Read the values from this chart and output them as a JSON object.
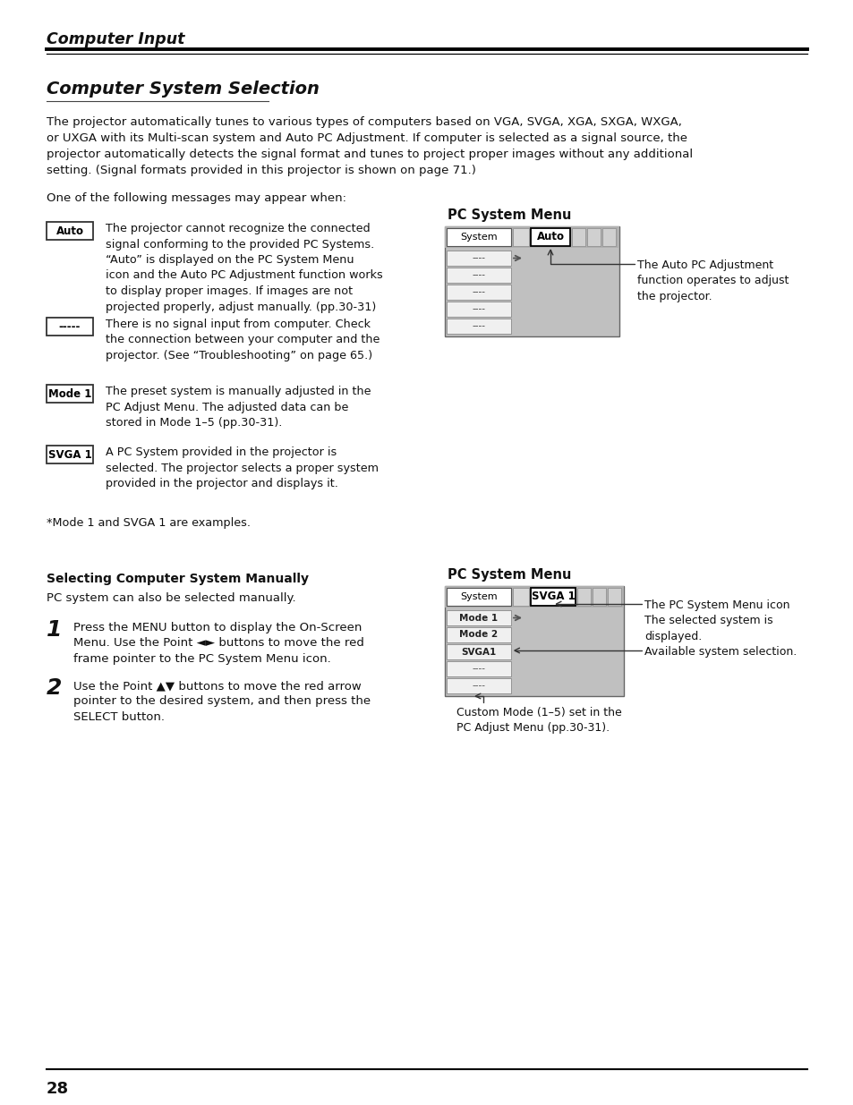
{
  "page_bg": "#ffffff",
  "header_title": "Computer Input",
  "section_title": "Computer System Selection",
  "body_text1": "The projector automatically tunes to various types of computers based on VGA, SVGA, XGA, SXGA, WXGA,\nor UXGA with its Multi-scan system and Auto PC Adjustment. If computer is selected as a signal source, the\nprojector automatically detects the signal format and tunes to project proper images without any additional\nsetting. (Signal formats provided in this projector is shown on page 71.)",
  "one_of_msg": "One of the following messages may appear when:",
  "labels": [
    "Auto",
    "-----",
    "Mode 1",
    "SVGA 1"
  ],
  "label_descs": [
    "The projector cannot recognize the connected\nsignal conforming to the provided PC Systems.\n“Auto” is displayed on the PC System Menu\nicon and the Auto PC Adjustment function works\nto display proper images. If images are not\nprojected properly, adjust manually. (pp.30-31)",
    "There is no signal input from computer. Check\nthe connection between your computer and the\nprojector. (See “Troubleshooting” on page 65.)",
    "The preset system is manually adjusted in the\nPC Adjust Menu. The adjusted data can be\nstored in Mode 1–5 (pp.30-31).",
    "A PC System provided in the projector is\nselected. The projector selects a proper system\nprovided in the projector and displays it."
  ],
  "footnote": "*Mode 1 and SVGA 1 are examples.",
  "pc_menu_title1": "PC System Menu",
  "pc_menu_label1": "Auto",
  "pc_menu_note1": "The Auto PC Adjustment\nfunction operates to adjust\nthe projector.",
  "menu_rows1": [
    "----",
    "----",
    "----",
    "----",
    "----"
  ],
  "section2_title": "Selecting Computer System Manually",
  "section2_body": "PC system can also be selected manually.",
  "step1_text": "Press the MENU button to display the On-Screen\nMenu. Use the Point ◄► buttons to move the red\nframe pointer to the PC System Menu icon.",
  "step2_text": "Use the Point ▲▼ buttons to move the red arrow\npointer to the desired system, and then press the\nSELECT button.",
  "pc_menu_title2": "PC System Menu",
  "pc_menu_label2": "SVGA 1",
  "pc_menu_note2a": "The PC System Menu icon\nThe selected system is\ndisplayed.",
  "pc_menu_note2b": "Available system selection.",
  "pc_menu_note2c": "Custom Mode (1–5) set in the\nPC Adjust Menu (pp.30-31).",
  "menu_rows2": [
    "Mode 1",
    "Mode 2",
    "SVGA1",
    "----",
    "----"
  ],
  "page_number": "28"
}
